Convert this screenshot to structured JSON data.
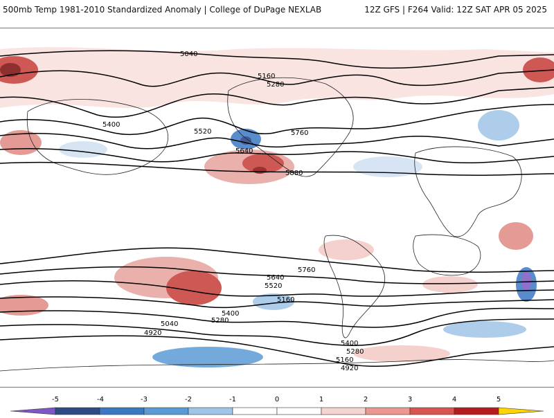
{
  "header": {
    "title": "500mb Temp 1981-2010 Standardized Anomaly | College of DuPage NEXLAB",
    "run_info": "12Z GFS | F264 Valid: 12Z SAT APR 05 2025"
  },
  "contour_labels": [
    "5040",
    "5160",
    "5280",
    "5400",
    "5520",
    "5640",
    "5760",
    "5880",
    "4920"
  ],
  "colorbar": {
    "ticks": [
      "-5",
      "-4",
      "-3",
      "-2",
      "-1",
      "0",
      "1",
      "2",
      "3",
      "4",
      "5"
    ],
    "colors": [
      "#7e57c2",
      "#2d4a86",
      "#3a78c2",
      "#5b9bd5",
      "#9fc5e8",
      "#d6e4f0",
      "#ffffff",
      "#f5d5d2",
      "#ea9891",
      "#d9534f",
      "#b71c1c",
      "#7a0a0a",
      "#ffd400"
    ]
  }
}
